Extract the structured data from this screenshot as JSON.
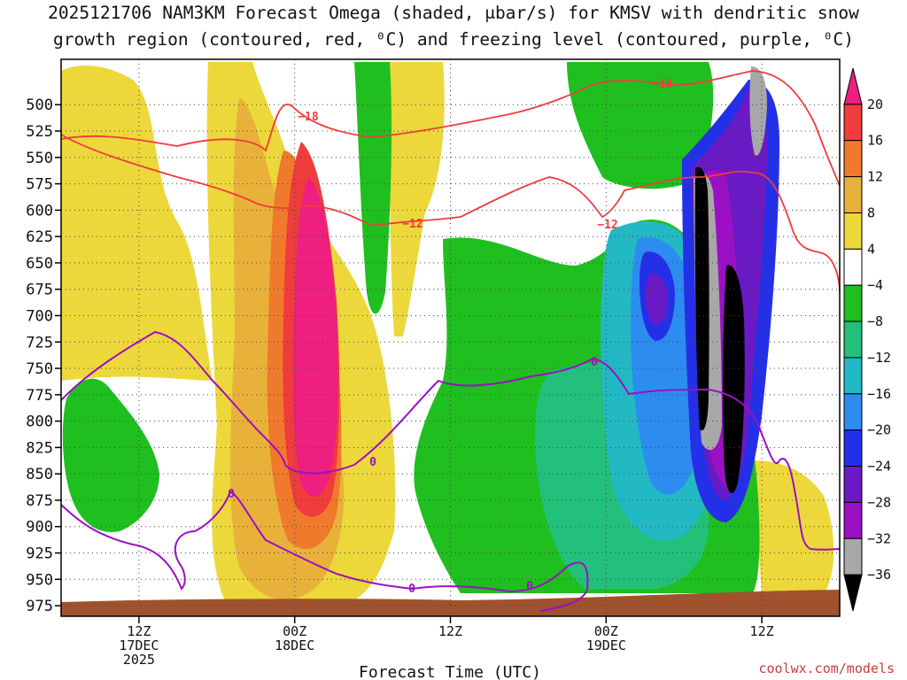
{
  "title": {
    "line1": "2025121706 NAM3KM Forecast Omega (shaded, μbar/s) for KMSV with dendritic snow",
    "line2": "growth region (contoured, red, ⁰C) and freezing level (contoured, purple, ⁰C)"
  },
  "credit": "coolwx.com/models",
  "chart_data": {
    "type": "heatmap",
    "title": "2025121706 NAM3KM Forecast Omega (shaded, μbar/s) for KMSV with dendritic snow growth region (contoured, red, ⁰C) and freezing level (contoured, purple, ⁰C)",
    "xlabel": "Forecast Time (UTC)",
    "ylabel": "",
    "x_range_hours": [
      0,
      60
    ],
    "x_ticks": [
      {
        "hour": 6,
        "label": [
          "12Z",
          "17DEC",
          "2025"
        ]
      },
      {
        "hour": 18,
        "label": [
          "00Z",
          "18DEC"
        ]
      },
      {
        "hour": 30,
        "label": [
          "12Z"
        ]
      },
      {
        "hour": 42,
        "label": [
          "00Z",
          "19DEC"
        ]
      },
      {
        "hour": 54,
        "label": [
          "12Z"
        ]
      }
    ],
    "y_range_mb": [
      985,
      457
    ],
    "y_ticks": [
      "500",
      "525",
      "550",
      "575",
      "600",
      "625",
      "650",
      "675",
      "700",
      "725",
      "750",
      "775",
      "800",
      "825",
      "850",
      "875",
      "900",
      "925",
      "950",
      "975"
    ],
    "grid": true,
    "colorbar": {
      "labels": [
        "20",
        "16",
        "12",
        "8",
        "4",
        "−4",
        "−8",
        "−12",
        "−16",
        "−20",
        "−24",
        "−28",
        "−32",
        "−36"
      ],
      "colors": [
        "#ee1f7e",
        "#f03c3c",
        "#f07a2c",
        "#e8b23a",
        "#ecd83a",
        "#ffffff",
        "#1fbf1f",
        "#22c07a",
        "#22b9c4",
        "#2c8cf0",
        "#2430e8",
        "#6a1ac4",
        "#9c10c4",
        "#a8a8a8",
        "#000000"
      ]
    },
    "contours": {
      "dgz_temperature_labels": [
        "−18",
        "−18",
        "−12",
        "−12"
      ],
      "freezing_level_labels": [
        "0",
        "0",
        "0",
        "0",
        "0"
      ]
    },
    "surface": "terrain"
  }
}
